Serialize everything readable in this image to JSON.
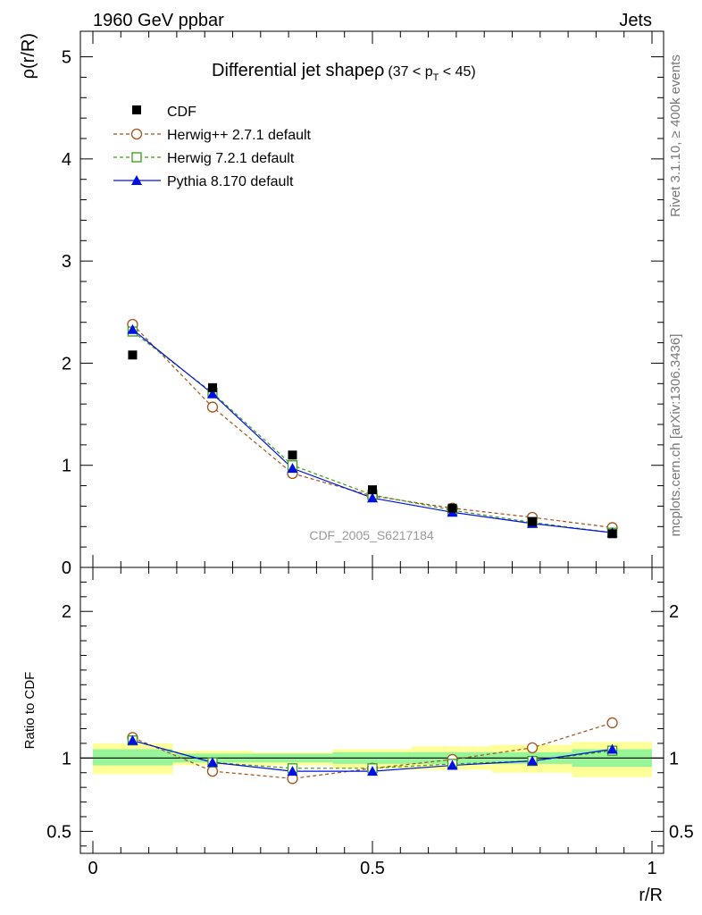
{
  "header": {
    "left": "1960 GeV ppbar",
    "right": "Jets"
  },
  "side_labels": {
    "rivet": "Rivet 3.1.10, ≥ 400k events",
    "mcplots": "mcplots.cern.ch [arXiv:1306.3436]"
  },
  "colors": {
    "cdf": "#000000",
    "herwigpp": "#a0521b",
    "herwig7": "#3c9a1e",
    "pythia": "#0010e0",
    "band_inner": "#99f599",
    "band_outer": "#ffff99"
  },
  "chart_data": [
    {
      "type": "scatter",
      "panel": "main",
      "title_main": "Differential jet shape",
      "title_rho": "ρ",
      "title_cut": "(37 < p",
      "title_sub": "T",
      "title_cut_end": " < 45)",
      "ylabel": "ρ(r/R)",
      "watermark": "CDF_2005_S6217184",
      "xlim": [
        0,
        1
      ],
      "ylim": [
        0,
        5.25
      ],
      "yticks": [
        {
          "v": 0,
          "label": "0"
        },
        {
          "v": 1,
          "label": "1"
        },
        {
          "v": 2,
          "label": "2"
        },
        {
          "v": 3,
          "label": "3"
        },
        {
          "v": 4,
          "label": "4"
        },
        {
          "v": 5,
          "label": "5"
        }
      ],
      "x": [
        0.071,
        0.214,
        0.357,
        0.5,
        0.643,
        0.786,
        0.929
      ],
      "series": [
        {
          "name": "CDF",
          "key": "cdf",
          "marker": "square-filled",
          "line": "none",
          "values": [
            2.08,
            1.76,
            1.1,
            0.76,
            0.58,
            0.45,
            0.33
          ]
        },
        {
          "name": "Herwig++ 2.7.1 default",
          "key": "herwigpp",
          "marker": "circle-open",
          "line": "dashed",
          "values": [
            2.38,
            1.57,
            0.92,
            0.7,
            0.58,
            0.49,
            0.39
          ]
        },
        {
          "name": "Herwig 7.2.1 default",
          "key": "herwig7",
          "marker": "square-open",
          "line": "dashed",
          "values": [
            2.31,
            1.71,
            1.0,
            0.71,
            0.56,
            0.44,
            0.34
          ]
        },
        {
          "name": "Pythia 8.170 default",
          "key": "pythia",
          "marker": "triangle-filled",
          "line": "solid",
          "values": [
            2.33,
            1.7,
            0.97,
            0.68,
            0.54,
            0.43,
            0.34
          ]
        }
      ]
    },
    {
      "type": "line",
      "panel": "ratio",
      "ylabel": "Ratio to CDF",
      "xlabel": "r/R",
      "xlim": [
        0,
        1
      ],
      "ylim": [
        0.35,
        2.3
      ],
      "yticks": [
        {
          "v": 0.5,
          "label": "0.5"
        },
        {
          "v": 1,
          "label": "1"
        },
        {
          "v": 2,
          "label": "2"
        }
      ],
      "xticks": [
        {
          "v": 0,
          "label": "0"
        },
        {
          "v": 0.5,
          "label": "0.5"
        },
        {
          "v": 1,
          "label": "1"
        }
      ],
      "bins": [
        [
          0,
          0.143
        ],
        [
          0.143,
          0.286
        ],
        [
          0.286,
          0.429
        ],
        [
          0.429,
          0.571
        ],
        [
          0.571,
          0.714
        ],
        [
          0.714,
          0.857
        ],
        [
          0.857,
          1.0
        ]
      ],
      "band_inner": [
        [
          0.95,
          1.06
        ],
        [
          0.97,
          1.03
        ],
        [
          0.97,
          1.03
        ],
        [
          0.96,
          1.04
        ],
        [
          0.96,
          1.04
        ],
        [
          0.96,
          1.04
        ],
        [
          0.94,
          1.06
        ]
      ],
      "band_outer": [
        [
          0.89,
          1.1
        ],
        [
          0.95,
          1.05
        ],
        [
          0.95,
          1.04
        ],
        [
          0.93,
          1.06
        ],
        [
          0.92,
          1.08
        ],
        [
          0.9,
          1.09
        ],
        [
          0.87,
          1.11
        ]
      ],
      "x": [
        0.071,
        0.214,
        0.357,
        0.5,
        0.643,
        0.786,
        0.929
      ],
      "series": [
        {
          "key": "herwigpp",
          "marker": "circle-open",
          "line": "dashed",
          "values": [
            1.14,
            0.91,
            0.86,
            0.93,
            0.99,
            1.07,
            1.24
          ]
        },
        {
          "key": "herwig7",
          "marker": "square-open",
          "line": "dashed",
          "values": [
            1.12,
            0.97,
            0.93,
            0.93,
            0.96,
            0.98,
            1.05
          ]
        },
        {
          "key": "pythia",
          "marker": "triangle-filled",
          "line": "solid",
          "values": [
            1.12,
            0.97,
            0.91,
            0.91,
            0.95,
            0.98,
            1.06
          ]
        }
      ]
    }
  ]
}
